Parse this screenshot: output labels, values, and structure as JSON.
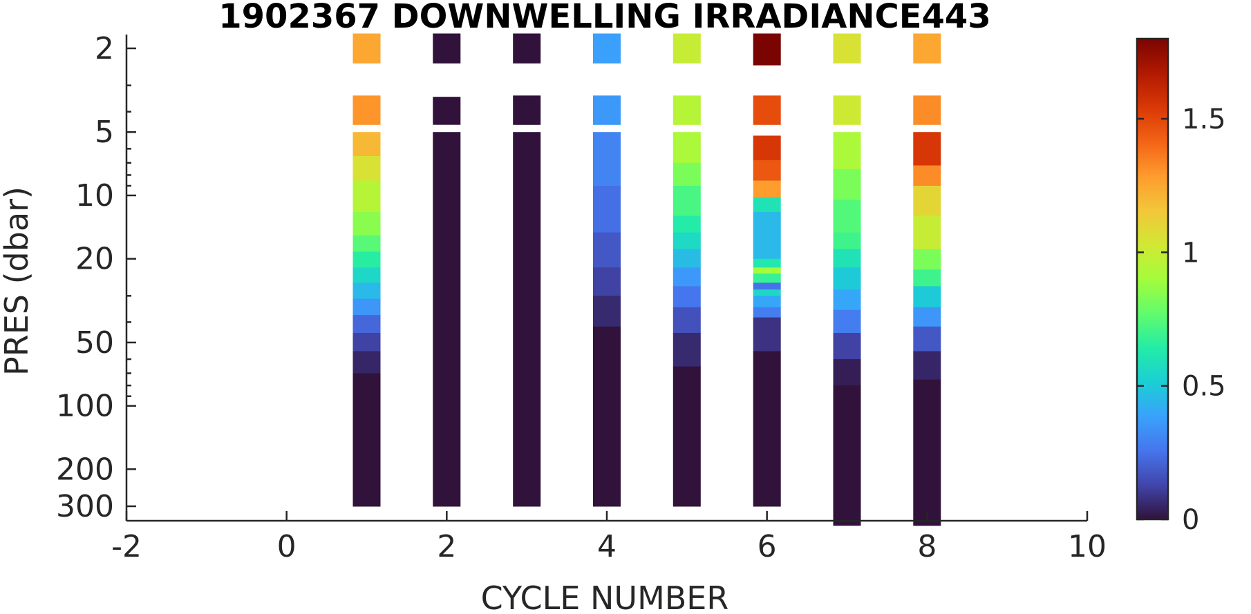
{
  "chart_data": {
    "type": "heatmap",
    "title": "1902367 DOWNWELLING IRRADIANCE443",
    "xlabel": "CYCLE NUMBER",
    "ylabel": "PRES (dbar)",
    "xlim": [
      -2,
      10
    ],
    "xticks": [
      -2,
      0,
      2,
      4,
      6,
      8,
      10
    ],
    "xtick_labels": [
      "-2",
      "0",
      "2",
      "4",
      "6",
      "8",
      "10"
    ],
    "yscale": "log",
    "ydirection": "reverse",
    "ylim": [
      1.7,
      370
    ],
    "yticks": [
      2,
      5,
      10,
      20,
      50,
      100,
      200,
      300
    ],
    "ytick_labels": [
      "2",
      "5",
      "10",
      "20",
      "50",
      "100",
      "200",
      "300"
    ],
    "colorbar": {
      "colormap": "turbo",
      "clim": [
        0,
        1.8
      ],
      "ticks": [
        0,
        0.5,
        1,
        1.5
      ],
      "tick_labels": [
        "0",
        "0.5",
        "1",
        "1.5"
      ]
    },
    "colormap_stops": [
      "#30123b",
      "#4145ab",
      "#4675ed",
      "#39a2fc",
      "#1bcfd4",
      "#24eca6",
      "#61fc6c",
      "#a4fc3b",
      "#d1e834",
      "#f3c63a",
      "#fe9b2d",
      "#f36315",
      "#d93806",
      "#b11901",
      "#7a0402"
    ],
    "series": [
      {
        "cycle": 1,
        "segments": [
          {
            "p_top": 1.7,
            "p_bottom": 2.35,
            "value": 1.25
          },
          {
            "p_top": 3.35,
            "p_bottom": 4.6,
            "value": 1.3
          },
          {
            "p_top": 5.0,
            "p_bottom": 6.5,
            "value": 1.2
          },
          {
            "p_top": 6.5,
            "p_bottom": 8.5,
            "value": 1.05
          },
          {
            "p_top": 8.5,
            "p_bottom": 12.0,
            "value": 0.95
          },
          {
            "p_top": 12.0,
            "p_bottom": 15.5,
            "value": 0.85
          },
          {
            "p_top": 15.5,
            "p_bottom": 18.5,
            "value": 0.75
          },
          {
            "p_top": 18.5,
            "p_bottom": 22.0,
            "value": 0.65
          },
          {
            "p_top": 22.0,
            "p_bottom": 26.0,
            "value": 0.55
          },
          {
            "p_top": 26.0,
            "p_bottom": 31.0,
            "value": 0.45
          },
          {
            "p_top": 31.0,
            "p_bottom": 37.0,
            "value": 0.35
          },
          {
            "p_top": 37.0,
            "p_bottom": 45.0,
            "value": 0.22
          },
          {
            "p_top": 45.0,
            "p_bottom": 55.0,
            "value": 0.12
          },
          {
            "p_top": 55.0,
            "p_bottom": 70.0,
            "value": 0.05
          },
          {
            "p_top": 70.0,
            "p_bottom": 300.0,
            "value": 0.0
          }
        ]
      },
      {
        "cycle": 2,
        "segments": [
          {
            "p_top": 1.7,
            "p_bottom": 2.35,
            "value": 0.0
          },
          {
            "p_top": 3.4,
            "p_bottom": 4.6,
            "value": 0.0
          },
          {
            "p_top": 5.0,
            "p_bottom": 300.0,
            "value": 0.0
          }
        ]
      },
      {
        "cycle": 3,
        "segments": [
          {
            "p_top": 1.7,
            "p_bottom": 2.35,
            "value": 0.0
          },
          {
            "p_top": 3.35,
            "p_bottom": 4.6,
            "value": 0.0
          },
          {
            "p_top": 5.0,
            "p_bottom": 300.0,
            "value": 0.0
          }
        ]
      },
      {
        "cycle": 4,
        "segments": [
          {
            "p_top": 1.7,
            "p_bottom": 2.35,
            "value": 0.38
          },
          {
            "p_top": 3.35,
            "p_bottom": 4.6,
            "value": 0.36
          },
          {
            "p_top": 5.0,
            "p_bottom": 9.0,
            "value": 0.3
          },
          {
            "p_top": 9.0,
            "p_bottom": 15.0,
            "value": 0.24
          },
          {
            "p_top": 15.0,
            "p_bottom": 22.0,
            "value": 0.18
          },
          {
            "p_top": 22.0,
            "p_bottom": 30.0,
            "value": 0.12
          },
          {
            "p_top": 30.0,
            "p_bottom": 42.0,
            "value": 0.06
          },
          {
            "p_top": 42.0,
            "p_bottom": 300.0,
            "value": 0.0
          }
        ]
      },
      {
        "cycle": 5,
        "segments": [
          {
            "p_top": 1.7,
            "p_bottom": 2.35,
            "value": 1.0
          },
          {
            "p_top": 3.35,
            "p_bottom": 4.6,
            "value": 0.95
          },
          {
            "p_top": 5.0,
            "p_bottom": 7.0,
            "value": 0.92
          },
          {
            "p_top": 7.0,
            "p_bottom": 9.0,
            "value": 0.82
          },
          {
            "p_top": 9.0,
            "p_bottom": 12.5,
            "value": 0.72
          },
          {
            "p_top": 12.5,
            "p_bottom": 15.0,
            "value": 0.64
          },
          {
            "p_top": 15.0,
            "p_bottom": 18.0,
            "value": 0.56
          },
          {
            "p_top": 18.0,
            "p_bottom": 22.0,
            "value": 0.46
          },
          {
            "p_top": 22.0,
            "p_bottom": 27.0,
            "value": 0.36
          },
          {
            "p_top": 27.0,
            "p_bottom": 34.0,
            "value": 0.26
          },
          {
            "p_top": 34.0,
            "p_bottom": 45.0,
            "value": 0.16
          },
          {
            "p_top": 45.0,
            "p_bottom": 65.0,
            "value": 0.06
          },
          {
            "p_top": 65.0,
            "p_bottom": 300.0,
            "value": 0.0
          }
        ]
      },
      {
        "cycle": 6,
        "segments": [
          {
            "p_top": 1.7,
            "p_bottom": 2.4,
            "value": 1.8
          },
          {
            "p_top": 3.35,
            "p_bottom": 4.6,
            "value": 1.48
          },
          {
            "p_top": 5.2,
            "p_bottom": 6.8,
            "value": 1.55
          },
          {
            "p_top": 6.8,
            "p_bottom": 8.5,
            "value": 1.45
          },
          {
            "p_top": 8.5,
            "p_bottom": 10.2,
            "value": 1.28
          },
          {
            "p_top": 10.2,
            "p_bottom": 12.0,
            "value": 0.6
          },
          {
            "p_top": 12.0,
            "p_bottom": 20.0,
            "value": 0.45
          },
          {
            "p_top": 20.0,
            "p_bottom": 22.0,
            "value": 0.62
          },
          {
            "p_top": 22.0,
            "p_bottom": 23.5,
            "value": 0.9
          },
          {
            "p_top": 23.5,
            "p_bottom": 26.0,
            "value": 0.68
          },
          {
            "p_top": 26.0,
            "p_bottom": 28.0,
            "value": 0.25
          },
          {
            "p_top": 28.0,
            "p_bottom": 30.0,
            "value": 0.55
          },
          {
            "p_top": 30.0,
            "p_bottom": 34.0,
            "value": 0.4
          },
          {
            "p_top": 34.0,
            "p_bottom": 38.0,
            "value": 0.28
          },
          {
            "p_top": 38.0,
            "p_bottom": 55.0,
            "value": 0.08
          },
          {
            "p_top": 55.0,
            "p_bottom": 300.0,
            "value": 0.0
          }
        ]
      },
      {
        "cycle": 7,
        "segments": [
          {
            "p_top": 1.7,
            "p_bottom": 2.35,
            "value": 1.05
          },
          {
            "p_top": 3.35,
            "p_bottom": 4.6,
            "value": 1.02
          },
          {
            "p_top": 5.0,
            "p_bottom": 7.5,
            "value": 0.92
          },
          {
            "p_top": 7.5,
            "p_bottom": 10.5,
            "value": 0.82
          },
          {
            "p_top": 10.5,
            "p_bottom": 15.0,
            "value": 0.74
          },
          {
            "p_top": 15.0,
            "p_bottom": 18.0,
            "value": 0.7
          },
          {
            "p_top": 18.0,
            "p_bottom": 22.0,
            "value": 0.6
          },
          {
            "p_top": 22.0,
            "p_bottom": 28.0,
            "value": 0.5
          },
          {
            "p_top": 28.0,
            "p_bottom": 35.0,
            "value": 0.4
          },
          {
            "p_top": 35.0,
            "p_bottom": 45.0,
            "value": 0.28
          },
          {
            "p_top": 45.0,
            "p_bottom": 60.0,
            "value": 0.12
          },
          {
            "p_top": 60.0,
            "p_bottom": 80.0,
            "value": 0.03
          },
          {
            "p_top": 80.0,
            "p_bottom": 370.0,
            "value": 0.0
          }
        ]
      },
      {
        "cycle": 8,
        "segments": [
          {
            "p_top": 1.7,
            "p_bottom": 2.35,
            "value": 1.25
          },
          {
            "p_top": 3.35,
            "p_bottom": 4.6,
            "value": 1.32
          },
          {
            "p_top": 5.0,
            "p_bottom": 7.2,
            "value": 1.55
          },
          {
            "p_top": 7.2,
            "p_bottom": 9.0,
            "value": 1.32
          },
          {
            "p_top": 9.0,
            "p_bottom": 12.5,
            "value": 1.1
          },
          {
            "p_top": 12.5,
            "p_bottom": 18.0,
            "value": 1.0
          },
          {
            "p_top": 18.0,
            "p_bottom": 22.5,
            "value": 0.82
          },
          {
            "p_top": 22.5,
            "p_bottom": 27.0,
            "value": 0.7
          },
          {
            "p_top": 27.0,
            "p_bottom": 34.0,
            "value": 0.5
          },
          {
            "p_top": 34.0,
            "p_bottom": 42.0,
            "value": 0.35
          },
          {
            "p_top": 42.0,
            "p_bottom": 55.0,
            "value": 0.18
          },
          {
            "p_top": 55.0,
            "p_bottom": 75.0,
            "value": 0.05
          },
          {
            "p_top": 75.0,
            "p_bottom": 370.0,
            "value": 0.0
          }
        ]
      }
    ]
  }
}
